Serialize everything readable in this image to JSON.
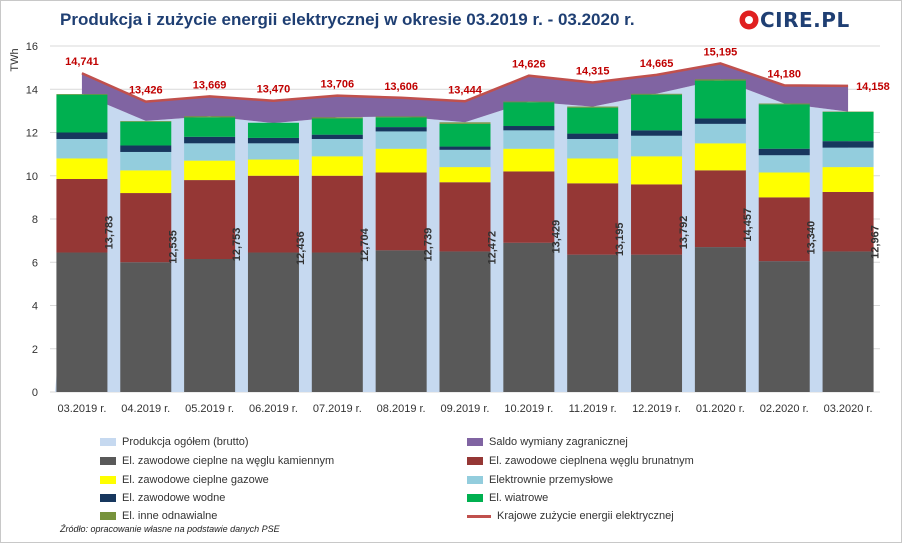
{
  "title": "Produkcja i zużycie energii elektrycznej w okresie 03.2019 r. - 03.2020 r.",
  "logo": {
    "text": "CIRE.PL",
    "icon": "cire-logo-icon",
    "color": "#e02020"
  },
  "source_note": "Źródło: opracowanie własne na podstawie danych PSE",
  "chart_data": {
    "type": "bar",
    "stacked": true,
    "ylabel": "TWh",
    "xlabel": "",
    "ylim": [
      0,
      16
    ],
    "yticks": [
      0,
      2,
      4,
      6,
      8,
      10,
      12,
      14,
      16
    ],
    "grid": true,
    "legend_position": "bottom",
    "categories": [
      "03.2019 r.",
      "04.2019 r.",
      "05.2019 r.",
      "06.2019 r.",
      "07.2019 r.",
      "08.2019 r.",
      "09.2019 r.",
      "10.2019 r.",
      "11.2019 r.",
      "12.2019 r.",
      "01.2020 r.",
      "02.2020 r.",
      "03.2020 r."
    ],
    "production_total": {
      "name": "Produkcja ogółem (brutto)",
      "color": "#c6d9f0",
      "values": [
        13.783,
        12.535,
        12.753,
        12.436,
        12.704,
        12.739,
        12.472,
        13.429,
        13.195,
        13.792,
        14.457,
        13.34,
        12.967
      ],
      "labels": [
        "13,783",
        "12,535",
        "12,753",
        "12,436",
        "12,704",
        "12,739",
        "12,472",
        "13,429",
        "13,195",
        "13,792",
        "14,457",
        "13,340",
        "12,967"
      ]
    },
    "import_balance": {
      "name": "Saldo wymiany zagranicznej",
      "color": "#8064a2"
    },
    "consumption": {
      "name": "Krajowe zużycie energii elektrycznej",
      "color": "#c0504d",
      "values": [
        14.741,
        13.426,
        13.669,
        13.47,
        13.706,
        13.606,
        13.444,
        14.626,
        14.315,
        14.665,
        15.195,
        14.18,
        14.158
      ],
      "labels": [
        "14,741",
        "13,426",
        "13,669",
        "13,470",
        "13,706",
        "13,606",
        "13,444",
        "14,626",
        "14,315",
        "14,665",
        "15,195",
        "14,180",
        "14,158"
      ]
    },
    "series": [
      {
        "name": "El. zawodowe cieplne na węglu kamiennym",
        "color": "#595959",
        "values": [
          6.45,
          6.0,
          6.15,
          6.45,
          6.45,
          6.55,
          6.5,
          6.9,
          6.35,
          6.35,
          6.7,
          6.05,
          6.5
        ]
      },
      {
        "name": "El. zawodowe cieplnena węglu brunatnym",
        "color": "#953735",
        "values": [
          3.4,
          3.2,
          3.65,
          3.55,
          3.55,
          3.6,
          3.2,
          3.3,
          3.3,
          3.25,
          3.55,
          2.95,
          2.75
        ]
      },
      {
        "name": "El. zawodowe cieplne gazowe",
        "color": "#ffff00",
        "values": [
          0.95,
          1.05,
          0.9,
          0.75,
          0.9,
          1.1,
          0.7,
          1.05,
          1.15,
          1.3,
          1.25,
          1.15,
          1.15
        ]
      },
      {
        "name": "Elektrownie przemysłowe",
        "color": "#93cddd",
        "values": [
          0.9,
          0.85,
          0.8,
          0.75,
          0.8,
          0.8,
          0.8,
          0.85,
          0.9,
          0.95,
          0.9,
          0.8,
          0.9
        ]
      },
      {
        "name": "El. zawodowe wodne",
        "color": "#17375e",
        "values": [
          0.3,
          0.3,
          0.3,
          0.25,
          0.2,
          0.2,
          0.15,
          0.2,
          0.25,
          0.25,
          0.25,
          0.3,
          0.3
        ]
      },
      {
        "name": "El. wiatrowe",
        "color": "#00b050",
        "values": [
          1.75,
          1.1,
          0.9,
          0.7,
          0.75,
          0.45,
          1.05,
          1.1,
          1.2,
          1.65,
          1.75,
          2.05,
          1.35
        ]
      },
      {
        "name": "El. inne odnawialne",
        "color": "#77933c",
        "values": [
          0.03,
          0.03,
          0.05,
          0.0,
          0.05,
          0.04,
          0.07,
          0.03,
          0.05,
          0.04,
          0.06,
          0.04,
          0.02
        ]
      }
    ]
  }
}
